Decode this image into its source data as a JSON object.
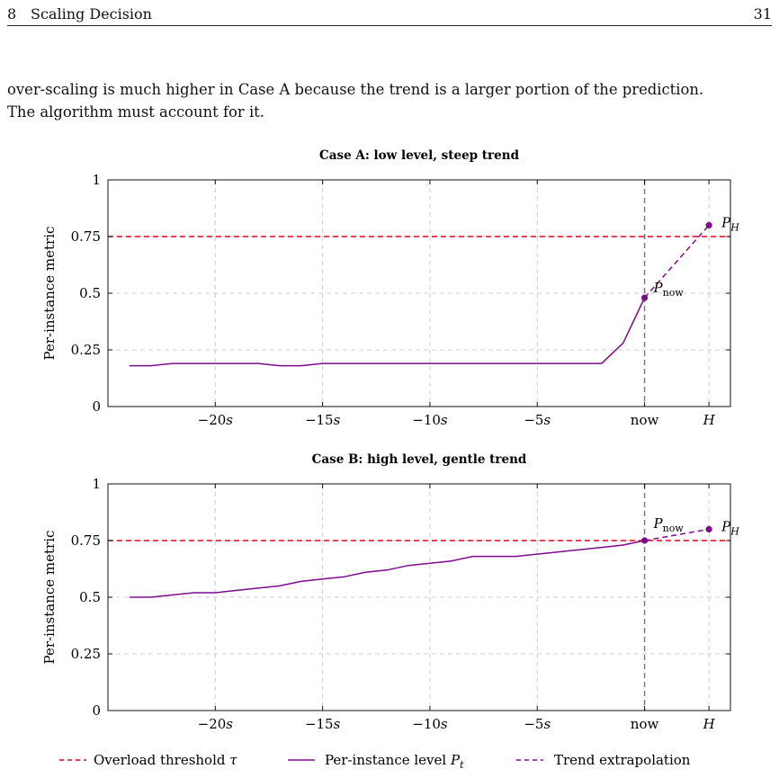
{
  "header": {
    "section_number": "8",
    "section_title": "Scaling Decision",
    "page_number": "31"
  },
  "paragraph": {
    "line1": "over-scaling is much higher in Case A because the trend is a larger portion of the prediction.",
    "line2": "The algorithm must account for it."
  },
  "colors": {
    "threshold": "#e8001a",
    "series": "#7d0b8e",
    "now_line": "#777777",
    "grid": "#cccccc"
  },
  "chart_data": [
    {
      "type": "line",
      "title": "Case A: low level, steep trend",
      "ylabel": "Per-instance metric",
      "xlim": [
        -25,
        4
      ],
      "ylim": [
        0,
        1
      ],
      "x_ticks": [
        {
          "x": -20,
          "label": "−20",
          "unit": "s"
        },
        {
          "x": -15,
          "label": "−15",
          "unit": "s"
        },
        {
          "x": -10,
          "label": "−10",
          "unit": "s"
        },
        {
          "x": -5,
          "label": "−5",
          "unit": "s"
        },
        {
          "x": 0,
          "label": "now",
          "unit": ""
        },
        {
          "x": 3,
          "label": "H",
          "unit": ""
        }
      ],
      "y_ticks": [
        {
          "y": 0,
          "label": "0"
        },
        {
          "y": 0.25,
          "label": "0.25"
        },
        {
          "y": 0.5,
          "label": "0.5"
        },
        {
          "y": 0.75,
          "label": "0.75"
        },
        {
          "y": 1,
          "label": "1"
        }
      ],
      "threshold": 0.75,
      "series": [
        {
          "x": [
            -24,
            -23,
            -22,
            -21,
            -20,
            -19,
            -18,
            -17,
            -16,
            -15,
            -14,
            -13,
            -12,
            -11,
            -10,
            -9,
            -8,
            -7,
            -6,
            -5,
            -4,
            -3,
            -2,
            -1,
            0
          ],
          "values": [
            0.18,
            0.18,
            0.19,
            0.19,
            0.19,
            0.19,
            0.19,
            0.18,
            0.18,
            0.19,
            0.19,
            0.19,
            0.19,
            0.19,
            0.19,
            0.19,
            0.19,
            0.19,
            0.19,
            0.19,
            0.19,
            0.19,
            0.19,
            0.28,
            0.48
          ]
        },
        {
          "x": [
            0,
            3
          ],
          "values": [
            0.48,
            0.8
          ]
        }
      ],
      "points": [
        {
          "x": 0,
          "y": 0.48,
          "label": "P",
          "sub": "now"
        },
        {
          "x": 3,
          "y": 0.8,
          "label": "P",
          "sub": "H"
        }
      ]
    },
    {
      "type": "line",
      "title": "Case B: high level, gentle trend",
      "ylabel": "Per-instance metric",
      "xlim": [
        -25,
        4
      ],
      "ylim": [
        0,
        1
      ],
      "x_ticks": [
        {
          "x": -20,
          "label": "−20",
          "unit": "s"
        },
        {
          "x": -15,
          "label": "−15",
          "unit": "s"
        },
        {
          "x": -10,
          "label": "−10",
          "unit": "s"
        },
        {
          "x": -5,
          "label": "−5",
          "unit": "s"
        },
        {
          "x": 0,
          "label": "now",
          "unit": ""
        },
        {
          "x": 3,
          "label": "H",
          "unit": ""
        }
      ],
      "y_ticks": [
        {
          "y": 0,
          "label": "0"
        },
        {
          "y": 0.25,
          "label": "0.25"
        },
        {
          "y": 0.5,
          "label": "0.5"
        },
        {
          "y": 0.75,
          "label": "0.75"
        },
        {
          "y": 1,
          "label": "1"
        }
      ],
      "threshold": 0.75,
      "series": [
        {
          "x": [
            -24,
            -23,
            -22,
            -21,
            -20,
            -19,
            -18,
            -17,
            -16,
            -15,
            -14,
            -13,
            -12,
            -11,
            -10,
            -9,
            -8,
            -7,
            -6,
            -5,
            -4,
            -3,
            -2,
            -1,
            0
          ],
          "values": [
            0.5,
            0.5,
            0.51,
            0.52,
            0.52,
            0.53,
            0.54,
            0.55,
            0.57,
            0.58,
            0.59,
            0.61,
            0.62,
            0.64,
            0.65,
            0.66,
            0.68,
            0.68,
            0.68,
            0.69,
            0.7,
            0.71,
            0.72,
            0.73,
            0.75
          ]
        },
        {
          "x": [
            0,
            3
          ],
          "values": [
            0.75,
            0.8
          ]
        }
      ],
      "points": [
        {
          "x": 0,
          "y": 0.75,
          "label": "P",
          "sub": "now"
        },
        {
          "x": 3,
          "y": 0.8,
          "label": "P",
          "sub": "H"
        }
      ]
    }
  ],
  "legend": {
    "threshold_label": "Overload threshold",
    "threshold_symbol": "τ",
    "level_label": "Per-instance level",
    "level_symbol": "P",
    "level_sub": "t",
    "trend_label": "Trend extrapolation"
  }
}
